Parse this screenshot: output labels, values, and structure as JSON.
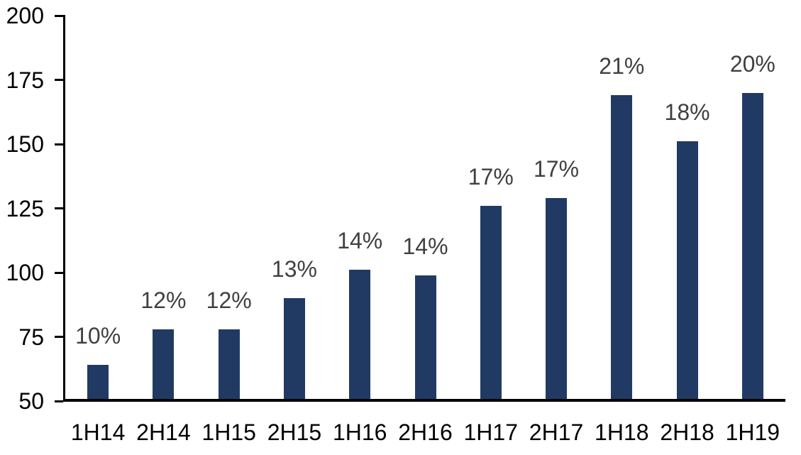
{
  "chart_data": {
    "type": "bar",
    "title": "",
    "xlabel": "",
    "ylabel": "",
    "categories": [
      "1H14",
      "2H14",
      "1H15",
      "2H15",
      "1H16",
      "2H16",
      "1H17",
      "2H17",
      "1H18",
      "2H18",
      "1H19"
    ],
    "series": [
      {
        "name": "value",
        "values": [
          64,
          78,
          78,
          90,
          101,
          99,
          126,
          129,
          169,
          151,
          170
        ]
      }
    ],
    "bar_labels": [
      "10%",
      "12%",
      "12%",
      "13%",
      "14%",
      "14%",
      "17%",
      "17%",
      "21%",
      "18%",
      "20%"
    ],
    "ylim": [
      50,
      200
    ],
    "yticks": [
      50,
      75,
      100,
      125,
      150,
      175,
      200
    ],
    "grid": false,
    "legend": "none",
    "colors": {
      "bar": "#213A63",
      "bar_label": "#404040",
      "axis": "#000000",
      "tick_label": "#000000",
      "background": "#FFFFFF"
    }
  }
}
